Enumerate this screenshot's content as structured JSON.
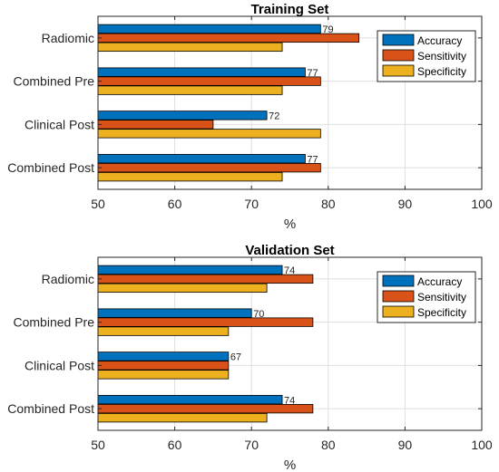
{
  "chart_data": [
    {
      "type": "bar",
      "orientation": "horizontal",
      "title": "Training Set",
      "xlabel": "%",
      "ylabel": "",
      "xlim": [
        50,
        100
      ],
      "xticks": [
        "50",
        "60",
        "70",
        "80",
        "90",
        "100"
      ],
      "categories": [
        "Radiomic",
        "Combined Pre",
        "Clinical Post",
        "Combined Post"
      ],
      "series": [
        {
          "name": "Accuracy",
          "values": [
            79,
            77,
            72,
            77
          ],
          "color": "#0072BD",
          "data_labels": [
            "79",
            "77",
            "72",
            "77"
          ]
        },
        {
          "name": "Sensitivity",
          "values": [
            84,
            79,
            65,
            79
          ],
          "color": "#D95319"
        },
        {
          "name": "Specificity",
          "values": [
            74,
            74,
            79,
            74
          ],
          "color": "#EDB120"
        }
      ],
      "grid": true,
      "legend": "top-right"
    },
    {
      "type": "bar",
      "orientation": "horizontal",
      "title": "Validation Set",
      "xlabel": "%",
      "ylabel": "",
      "xlim": [
        50,
        100
      ],
      "xticks": [
        "50",
        "60",
        "70",
        "80",
        "90",
        "100"
      ],
      "categories": [
        "Radiomic",
        "Combined Pre",
        "Clinical Post",
        "Combined Post"
      ],
      "series": [
        {
          "name": "Accuracy",
          "values": [
            74,
            70,
            67,
            74
          ],
          "color": "#0072BD",
          "data_labels": [
            "74",
            "70",
            "67",
            "74"
          ]
        },
        {
          "name": "Sensitivity",
          "values": [
            78,
            78,
            67,
            78
          ],
          "color": "#D95319"
        },
        {
          "name": "Specificity",
          "values": [
            72,
            67,
            67,
            72
          ],
          "color": "#EDB120"
        }
      ],
      "grid": true,
      "legend": "top-right"
    }
  ]
}
